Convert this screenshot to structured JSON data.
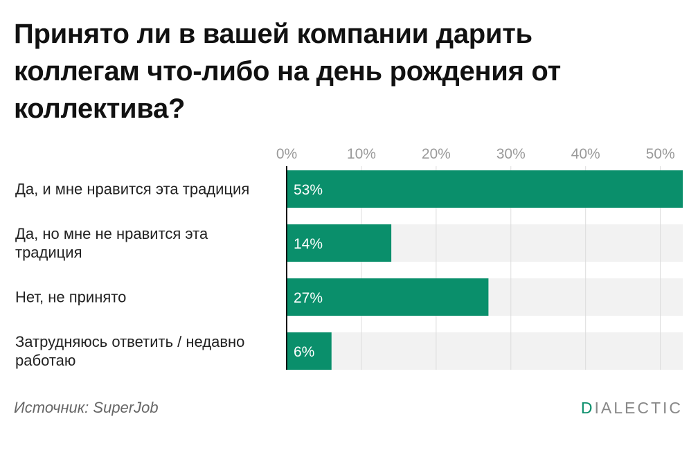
{
  "title": "Принято ли в вашей компании дарить коллегам что-либо на день рождения от коллектива?",
  "source": "Источник: SuperJob",
  "logo": {
    "first": "D",
    "rest": "IALECTIC"
  },
  "colors": {
    "bar": "#0a8f6b",
    "track": "#f2f2f2",
    "grid": "#dcdcdc",
    "axis": "#111111",
    "tick": "#9a9a9a",
    "data_label": "#ffffff"
  },
  "chart_data": {
    "type": "bar",
    "orientation": "horizontal",
    "categories": [
      "Да, и мне нравится эта традиция",
      "Да, но мне не нравится эта традиция",
      "Нет, не принято",
      "Затрудняюсь ответить / недавно работаю"
    ],
    "values": [
      53,
      14,
      27,
      6
    ],
    "data_labels": [
      "53%",
      "14%",
      "27%",
      "6%"
    ],
    "ticks": [
      0,
      10,
      20,
      30,
      40,
      50
    ],
    "tick_labels": [
      "0%",
      "10%",
      "20%",
      "30%",
      "40%",
      "50%"
    ],
    "xlim": [
      0,
      53
    ],
    "grid": true,
    "axis_position": "top"
  }
}
